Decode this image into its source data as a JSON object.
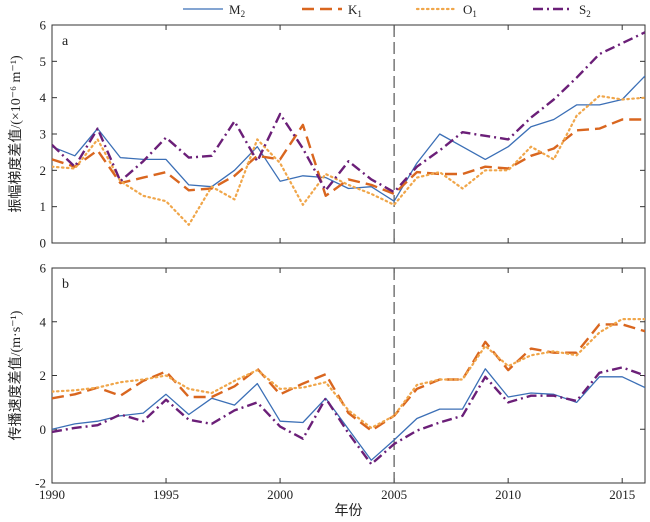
{
  "legend": [
    {
      "name": "M",
      "sub": "2"
    },
    {
      "name": "K",
      "sub": "1"
    },
    {
      "name": "O",
      "sub": "1"
    },
    {
      "name": "S",
      "sub": "2"
    }
  ],
  "chart_data": [
    {
      "type": "line",
      "panel_label": "a",
      "ylabel": "振幅梯度差值/(×10⁻⁶ m⁻¹)",
      "xlabel": "",
      "xlim": [
        1990,
        2016
      ],
      "ylim": [
        0,
        6
      ],
      "xticks": [
        1990,
        1995,
        2000,
        2005,
        2010,
        2015
      ],
      "yticks": [
        0,
        1,
        2,
        3,
        4,
        5,
        6
      ],
      "reference_line_x": 2005,
      "x": [
        1990,
        1991,
        1992,
        1993,
        1994,
        1995,
        1996,
        1997,
        1998,
        1999,
        2000,
        2001,
        2002,
        2003,
        2004,
        2005,
        2006,
        2007,
        2008,
        2009,
        2010,
        2011,
        2012,
        2013,
        2014,
        2015,
        2016
      ],
      "series": [
        {
          "name": "M2",
          "color": "#3b6fb6",
          "style": "solid",
          "values": [
            2.65,
            2.4,
            3.15,
            2.35,
            2.3,
            2.3,
            1.6,
            1.55,
            2.0,
            2.65,
            1.7,
            1.85,
            1.8,
            1.5,
            1.55,
            1.15,
            2.2,
            3.0,
            2.65,
            2.3,
            2.65,
            3.2,
            3.4,
            3.8,
            3.8,
            3.95,
            4.6
          ]
        },
        {
          "name": "K1",
          "color": "#d9661f",
          "style": "dashed",
          "values": [
            2.3,
            2.1,
            2.55,
            1.65,
            1.8,
            1.95,
            1.45,
            1.5,
            1.85,
            2.4,
            2.3,
            3.25,
            1.3,
            1.75,
            1.6,
            1.35,
            1.95,
            1.9,
            1.9,
            2.1,
            2.05,
            2.4,
            2.6,
            3.1,
            3.15,
            3.4,
            3.4
          ]
        },
        {
          "name": "O1",
          "color": "#f0a64a",
          "style": "dotted",
          "values": [
            2.1,
            2.05,
            2.85,
            1.7,
            1.3,
            1.15,
            0.5,
            1.55,
            1.2,
            2.85,
            2.2,
            1.05,
            1.9,
            1.6,
            1.35,
            1.05,
            1.8,
            1.95,
            1.5,
            2.0,
            2.0,
            2.65,
            2.3,
            3.5,
            4.05,
            3.95,
            4.0
          ]
        },
        {
          "name": "S2",
          "color": "#6b1f78",
          "style": "dashdot",
          "values": [
            2.7,
            2.1,
            3.15,
            1.7,
            2.25,
            2.9,
            2.35,
            2.4,
            3.35,
            2.25,
            3.55,
            2.6,
            1.45,
            2.25,
            1.75,
            1.4,
            2.1,
            2.55,
            3.05,
            2.95,
            2.85,
            3.45,
            3.95,
            4.55,
            5.2,
            5.5,
            5.8
          ]
        }
      ]
    },
    {
      "type": "line",
      "panel_label": "b",
      "ylabel": "传播速度差值/(m·s⁻¹)",
      "xlabel": "年份",
      "xlim": [
        1990,
        2016
      ],
      "ylim": [
        -2,
        6
      ],
      "xticks": [
        1990,
        1995,
        2000,
        2005,
        2010,
        2015
      ],
      "yticks": [
        -2,
        0,
        2,
        4,
        6
      ],
      "reference_line_x": 2005,
      "x": [
        1990,
        1991,
        1992,
        1993,
        1994,
        1995,
        1996,
        1997,
        1998,
        1999,
        2000,
        2001,
        2002,
        2003,
        2004,
        2005,
        2006,
        2007,
        2008,
        2009,
        2010,
        2011,
        2012,
        2013,
        2014,
        2015,
        2016
      ],
      "series": [
        {
          "name": "M2",
          "color": "#3b6fb6",
          "style": "solid",
          "values": [
            0.0,
            0.2,
            0.3,
            0.5,
            0.6,
            1.3,
            0.55,
            1.15,
            0.9,
            1.7,
            0.3,
            0.25,
            1.15,
            0.0,
            -1.15,
            -0.4,
            0.4,
            0.75,
            0.75,
            2.25,
            1.2,
            1.35,
            1.3,
            1.0,
            1.95,
            1.95,
            1.55
          ]
        },
        {
          "name": "K1",
          "color": "#d9661f",
          "style": "dashed",
          "values": [
            1.15,
            1.3,
            1.55,
            1.25,
            1.8,
            2.15,
            1.2,
            1.2,
            1.6,
            2.25,
            1.3,
            1.7,
            2.05,
            0.6,
            -0.05,
            0.5,
            1.5,
            1.85,
            1.85,
            3.25,
            2.2,
            3.0,
            2.85,
            2.85,
            3.9,
            3.9,
            3.65
          ]
        },
        {
          "name": "O1",
          "color": "#f0a64a",
          "style": "dotted",
          "values": [
            1.4,
            1.45,
            1.55,
            1.75,
            1.85,
            2.0,
            1.5,
            1.35,
            1.8,
            2.2,
            1.5,
            1.55,
            1.75,
            0.7,
            0.05,
            0.5,
            1.65,
            1.85,
            1.85,
            3.1,
            2.35,
            2.75,
            2.9,
            2.75,
            3.6,
            4.1,
            4.1
          ]
        },
        {
          "name": "S2",
          "color": "#6b1f78",
          "style": "dashdot",
          "values": [
            -0.1,
            0.05,
            0.15,
            0.55,
            0.3,
            1.1,
            0.35,
            0.2,
            0.7,
            1.0,
            0.1,
            -0.35,
            1.15,
            -0.15,
            -1.3,
            -0.55,
            -0.05,
            0.25,
            0.5,
            1.95,
            1.0,
            1.25,
            1.25,
            1.05,
            2.1,
            2.3,
            2.0
          ]
        }
      ]
    }
  ]
}
